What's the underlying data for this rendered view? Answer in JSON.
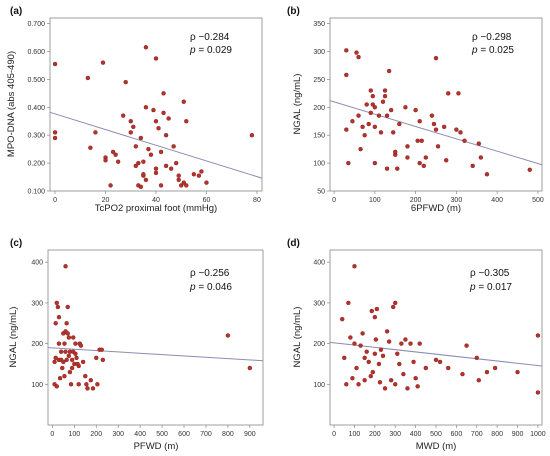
{
  "colors": {
    "point": "#b5332c",
    "point_edge": "#7f1d18",
    "fit_line": "#8c8cb4",
    "frame": "#888888"
  },
  "chart_data": [
    {
      "panel": "(a)",
      "type": "scatter",
      "xlabel": "TcPO2 proximal foot (mmHg)",
      "ylabel": "MPO-DNA (abs 405-490)",
      "xlim": [
        -2,
        82
      ],
      "ylim": [
        0.1,
        0.72
      ],
      "xticks": [
        0,
        20,
        40,
        60,
        80
      ],
      "yticks": [
        0.1,
        0.2,
        0.3,
        0.4,
        0.5,
        0.6,
        0.7
      ],
      "yticklabels": [
        "0.100",
        "0.200",
        "0.300",
        "0.400",
        "0.500",
        "0.600",
        "0.700"
      ],
      "rho": "ρ −0.284",
      "p": "= 0.029",
      "fit": [
        [
          -2,
          0.382
        ],
        [
          82,
          0.146
        ]
      ],
      "points": [
        [
          0,
          0.555
        ],
        [
          0,
          0.31
        ],
        [
          0,
          0.29
        ],
        [
          13,
          0.505
        ],
        [
          14,
          0.255
        ],
        [
          16,
          0.31
        ],
        [
          19,
          0.56
        ],
        [
          20,
          0.22
        ],
        [
          20,
          0.21
        ],
        [
          22,
          0.12
        ],
        [
          23,
          0.24
        ],
        [
          24,
          0.23
        ],
        [
          25,
          0.205
        ],
        [
          27,
          0.37
        ],
        [
          28,
          0.49
        ],
        [
          30,
          0.35
        ],
        [
          30,
          0.31
        ],
        [
          31,
          0.33
        ],
        [
          32,
          0.19
        ],
        [
          32,
          0.26
        ],
        [
          33,
          0.2
        ],
        [
          33,
          0.12
        ],
        [
          34,
          0.115
        ],
        [
          34,
          0.29
        ],
        [
          35,
          0.205
        ],
        [
          35,
          0.155
        ],
        [
          35,
          0.16
        ],
        [
          36,
          0.615
        ],
        [
          36,
          0.14
        ],
        [
          36,
          0.4
        ],
        [
          37,
          0.25
        ],
        [
          38,
          0.23
        ],
        [
          39,
          0.39
        ],
        [
          40,
          0.575
        ],
        [
          40,
          0.165
        ],
        [
          40,
          0.35
        ],
        [
          40,
          0.18
        ],
        [
          41,
          0.325
        ],
        [
          42,
          0.12
        ],
        [
          42,
          0.24
        ],
        [
          43,
          0.38
        ],
        [
          43,
          0.45
        ],
        [
          44,
          0.19
        ],
        [
          44,
          0.3
        ],
        [
          45,
          0.36
        ],
        [
          46,
          0.18
        ],
        [
          47,
          0.26
        ],
        [
          48,
          0.2
        ],
        [
          49,
          0.155
        ],
        [
          49,
          0.14
        ],
        [
          50,
          0.12
        ],
        [
          51,
          0.42
        ],
        [
          51,
          0.13
        ],
        [
          52,
          0.35
        ],
        [
          52,
          0.12
        ],
        [
          55,
          0.16
        ],
        [
          57,
          0.155
        ],
        [
          58,
          0.17
        ],
        [
          60,
          0.13
        ],
        [
          78,
          0.3
        ]
      ]
    },
    {
      "panel": "(b)",
      "type": "scatter",
      "xlabel": "6PFWD (m)",
      "ylabel": "NGAL (ng/mL)",
      "xlim": [
        -10,
        510
      ],
      "ylim": [
        50,
        360
      ],
      "xticks": [
        0,
        100,
        200,
        300,
        400,
        500
      ],
      "yticks": [
        50,
        100,
        150,
        200,
        250,
        300,
        350
      ],
      "rho": "ρ −0.298",
      "p": "= 0.025",
      "fit": [
        [
          -10,
          212
        ],
        [
          510,
          97
        ]
      ],
      "points": [
        [
          30,
          302
        ],
        [
          30,
          258
        ],
        [
          30,
          160
        ],
        [
          35,
          100
        ],
        [
          45,
          175
        ],
        [
          55,
          298
        ],
        [
          60,
          290
        ],
        [
          60,
          185
        ],
        [
          65,
          125
        ],
        [
          70,
          165
        ],
        [
          75,
          150
        ],
        [
          80,
          205
        ],
        [
          85,
          170
        ],
        [
          90,
          230
        ],
        [
          90,
          190
        ],
        [
          95,
          220
        ],
        [
          95,
          205
        ],
        [
          100,
          200
        ],
        [
          100,
          165
        ],
        [
          100,
          100
        ],
        [
          110,
          185
        ],
        [
          115,
          155
        ],
        [
          120,
          210
        ],
        [
          125,
          220
        ],
        [
          125,
          230
        ],
        [
          130,
          185
        ],
        [
          130,
          90
        ],
        [
          135,
          265
        ],
        [
          140,
          195
        ],
        [
          145,
          155
        ],
        [
          150,
          115
        ],
        [
          150,
          120
        ],
        [
          155,
          90
        ],
        [
          160,
          170
        ],
        [
          175,
          200
        ],
        [
          180,
          130
        ],
        [
          180,
          110
        ],
        [
          200,
          195
        ],
        [
          205,
          140
        ],
        [
          210,
          175
        ],
        [
          210,
          100
        ],
        [
          215,
          140
        ],
        [
          220,
          95
        ],
        [
          225,
          110
        ],
        [
          240,
          185
        ],
        [
          245,
          170
        ],
        [
          250,
          288
        ],
        [
          250,
          160
        ],
        [
          255,
          130
        ],
        [
          270,
          165
        ],
        [
          275,
          105
        ],
        [
          280,
          225
        ],
        [
          300,
          160
        ],
        [
          305,
          225
        ],
        [
          310,
          155
        ],
        [
          320,
          140
        ],
        [
          340,
          95
        ],
        [
          355,
          135
        ],
        [
          360,
          110
        ],
        [
          375,
          80
        ],
        [
          480,
          88
        ]
      ]
    },
    {
      "panel": "(c)",
      "type": "scatter",
      "xlabel": "PFWD (m)",
      "ylabel": "NGAL (ng/mL)",
      "xlim": [
        -20,
        960
      ],
      "ylim": [
        0,
        430
      ],
      "xticks": [
        0,
        100,
        200,
        300,
        400,
        500,
        600,
        700,
        800,
        900
      ],
      "yticks": [
        100,
        200,
        300,
        400
      ],
      "rho": "ρ −0.256",
      "p": "= 0.046",
      "fit": [
        [
          -20,
          190
        ],
        [
          960,
          158
        ]
      ],
      "points": [
        [
          10,
          155
        ],
        [
          10,
          100
        ],
        [
          15,
          250
        ],
        [
          15,
          165
        ],
        [
          20,
          300
        ],
        [
          20,
          95
        ],
        [
          25,
          290
        ],
        [
          30,
          265
        ],
        [
          30,
          200
        ],
        [
          30,
          160
        ],
        [
          35,
          115
        ],
        [
          40,
          180
        ],
        [
          40,
          160
        ],
        [
          45,
          140
        ],
        [
          50,
          225
        ],
        [
          50,
          155
        ],
        [
          55,
          120
        ],
        [
          55,
          200
        ],
        [
          60,
          390
        ],
        [
          60,
          230
        ],
        [
          60,
          180
        ],
        [
          65,
          250
        ],
        [
          65,
          160
        ],
        [
          70,
          290
        ],
        [
          70,
          225
        ],
        [
          75,
          215
        ],
        [
          75,
          170
        ],
        [
          80,
          180
        ],
        [
          80,
          130
        ],
        [
          85,
          100
        ],
        [
          90,
          160
        ],
        [
          90,
          140
        ],
        [
          95,
          180
        ],
        [
          95,
          215
        ],
        [
          100,
          150
        ],
        [
          105,
          200
        ],
        [
          105,
          175
        ],
        [
          110,
          165
        ],
        [
          115,
          150
        ],
        [
          120,
          145
        ],
        [
          120,
          100
        ],
        [
          125,
          200
        ],
        [
          130,
          195
        ],
        [
          140,
          155
        ],
        [
          150,
          120
        ],
        [
          155,
          100
        ],
        [
          160,
          90
        ],
        [
          175,
          110
        ],
        [
          185,
          90
        ],
        [
          200,
          165
        ],
        [
          205,
          100
        ],
        [
          215,
          185
        ],
        [
          225,
          185
        ],
        [
          230,
          160
        ],
        [
          800,
          220
        ],
        [
          900,
          140
        ]
      ]
    },
    {
      "panel": "(d)",
      "type": "scatter",
      "xlabel": "MWD (m)",
      "ylabel": "NGAL (ng/mL)",
      "xlim": [
        -20,
        1020
      ],
      "ylim": [
        0,
        430
      ],
      "xticks": [
        0,
        100,
        200,
        300,
        400,
        500,
        600,
        700,
        800,
        900,
        1000
      ],
      "yticks": [
        100,
        200,
        300,
        400
      ],
      "rho": "ρ −0.305",
      "p": "= 0.017",
      "fit": [
        [
          -20,
          203
        ],
        [
          1020,
          145
        ]
      ],
      "points": [
        [
          40,
          260
        ],
        [
          50,
          165
        ],
        [
          60,
          100
        ],
        [
          70,
          300
        ],
        [
          80,
          215
        ],
        [
          90,
          115
        ],
        [
          100,
          390
        ],
        [
          100,
          200
        ],
        [
          110,
          140
        ],
        [
          120,
          100
        ],
        [
          130,
          195
        ],
        [
          140,
          225
        ],
        [
          150,
          165
        ],
        [
          150,
          110
        ],
        [
          160,
          180
        ],
        [
          170,
          155
        ],
        [
          180,
          120
        ],
        [
          185,
          280
        ],
        [
          190,
          130
        ],
        [
          200,
          175
        ],
        [
          200,
          265
        ],
        [
          205,
          210
        ],
        [
          210,
          285
        ],
        [
          220,
          150
        ],
        [
          225,
          105
        ],
        [
          230,
          185
        ],
        [
          240,
          170
        ],
        [
          250,
          90
        ],
        [
          260,
          230
        ],
        [
          270,
          205
        ],
        [
          280,
          110
        ],
        [
          290,
          290
        ],
        [
          300,
          300
        ],
        [
          300,
          100
        ],
        [
          310,
          175
        ],
        [
          320,
          150
        ],
        [
          330,
          200
        ],
        [
          340,
          125
        ],
        [
          350,
          210
        ],
        [
          360,
          90
        ],
        [
          375,
          200
        ],
        [
          390,
          155
        ],
        [
          400,
          115
        ],
        [
          410,
          95
        ],
        [
          420,
          200
        ],
        [
          450,
          140
        ],
        [
          500,
          160
        ],
        [
          520,
          155
        ],
        [
          560,
          140
        ],
        [
          630,
          125
        ],
        [
          650,
          195
        ],
        [
          700,
          165
        ],
        [
          710,
          110
        ],
        [
          750,
          130
        ],
        [
          790,
          140
        ],
        [
          900,
          130
        ],
        [
          1000,
          80
        ],
        [
          1000,
          220
        ]
      ]
    }
  ]
}
